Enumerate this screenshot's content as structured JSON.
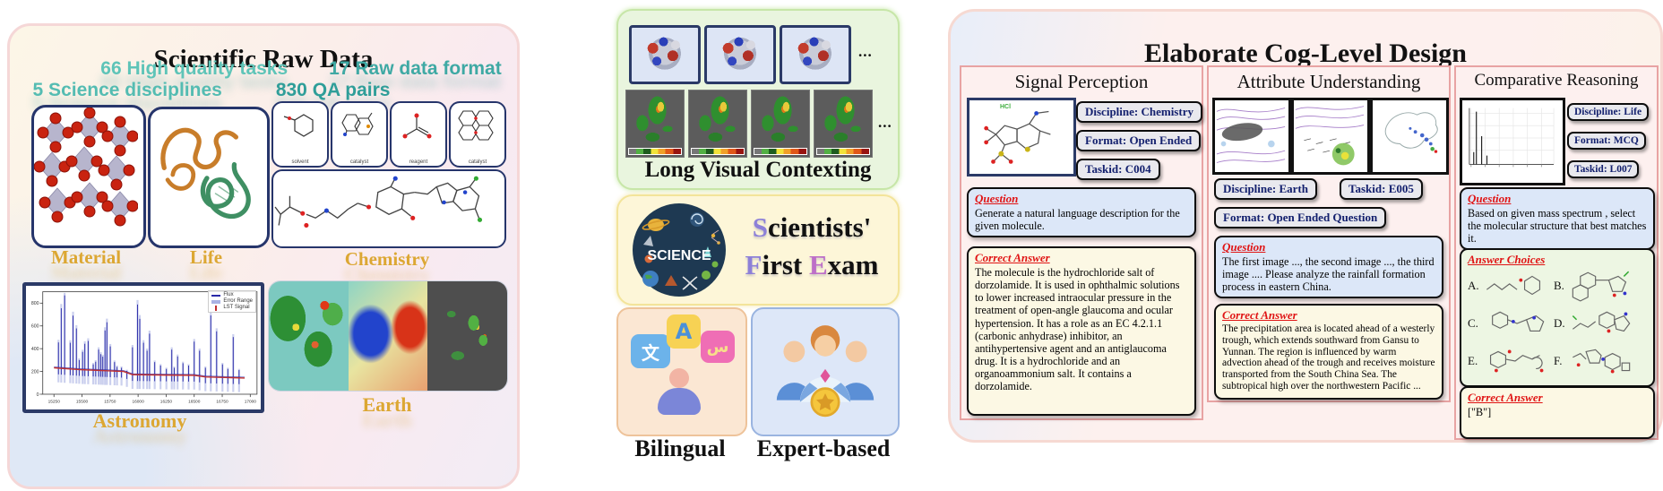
{
  "left_panel": {
    "title": "Scientific Raw Data",
    "stat1": "66 High quality tasks",
    "stat2": "17 Raw data format",
    "stat3": "5 Science disciplines",
    "stat4": "830 QA pairs",
    "labels": {
      "material": "Material",
      "life": "Life",
      "chemistry": "Chemistry",
      "astronomy": "Astronomy",
      "earth": "Earth"
    },
    "chem_cards": [
      "solvent",
      "catalyst",
      "reagent",
      "catalyst"
    ]
  },
  "middle": {
    "long_visual_title": "Long Visual Contexting",
    "ellipsis": "...",
    "logo_text": "SCIENCE",
    "sfe": {
      "w1i": "S",
      "w1r": "cientists'",
      "w2i": "F",
      "w2r": "irst ",
      "w3i": "E",
      "w3r": "xam"
    },
    "bilingual_label": "Bilingual",
    "glyph_zh": "文",
    "glyph_a": "A",
    "glyph_ar": "س",
    "expert_label": "Expert-based"
  },
  "right_panel": {
    "title": "Elaborate Cog-Level Design",
    "question_header": "Question",
    "answer_header": "Correct Answer",
    "choices_header": "Answer Choices",
    "col1": {
      "title": "Signal Perception",
      "molecule_note": "HCl",
      "badge1": "Discipline: Chemistry",
      "badge2": "Format: Open Ended",
      "badge3": "Taskid: C004",
      "question": "Generate a natural language description for the given molecule.",
      "answer": "The molecule is the hydrochloride salt of dorzolamide. It is used in ophthalmic solutions to lower increased intraocular pressure in the treatment of open-angle glaucoma and ocular hypertension. It has a role as an EC 4.2.1.1 (carbonic anhydrase) inhibitor, an antihypertensive agent and an antiglaucoma drug. It is a hydrochloride and an organoammonium salt. It contains a dorzolamide."
    },
    "col2": {
      "title": "Attribute Understanding",
      "badge1": "Discipline: Earth",
      "badge2": "Taskid: E005",
      "badge3": "Format: Open Ended Question",
      "question": "The first image ..., the second image ..., the third image .... Please analyze the rainfall formation process in eastern China.",
      "answer": "The precipitation area is located ahead of a westerly trough, which extends southward from Gansu to Yunnan. The region is influenced by warm advection ahead of the trough and receives moisture transported from the South China Sea. The subtropical high over the northwestern Pacific ..."
    },
    "col3": {
      "title": "Comparative Reasoning",
      "badge1": "Discipline: Life",
      "badge2": "Format: MCQ",
      "badge3": "Taskid: L007",
      "question": "Based on given mass spectrum , select the molecular structure that best matches it.",
      "choices": [
        "A.",
        "B.",
        "C.",
        "D.",
        "E.",
        "F."
      ],
      "answer": "[\"B\"]"
    }
  },
  "chart_data": {
    "type": "line",
    "title": "",
    "xlabel": "",
    "ylabel": "",
    "legend": [
      "Flux",
      "Error Range",
      "LST Signal"
    ],
    "legend_position": "upper right",
    "grid": false,
    "x_ticks": [
      15250,
      15500,
      15750,
      16000,
      16250,
      16500,
      16750,
      17000
    ],
    "y_ticks": [
      0,
      200,
      400,
      600,
      800
    ],
    "xlim": [
      15150,
      17060
    ],
    "ylim": [
      0,
      900
    ],
    "colors": {
      "flux": "#2a2aa8",
      "error_range": "#a9b2e4",
      "lst_signal": "#c03030"
    },
    "baseline": [
      [
        15250,
        232
      ],
      [
        15500,
        215
      ],
      [
        15750,
        205
      ],
      [
        15870,
        200
      ],
      [
        15950,
        172
      ],
      [
        16250,
        168
      ],
      [
        16500,
        166
      ],
      [
        16600,
        152
      ],
      [
        16950,
        142
      ]
    ],
    "spikes": [
      [
        15290,
        455
      ],
      [
        15315,
        755
      ],
      [
        15345,
        868
      ],
      [
        15395,
        452
      ],
      [
        15420,
        690
      ],
      [
        15450,
        578
      ],
      [
        15475,
        300
      ],
      [
        15505,
        372
      ],
      [
        15525,
        443
      ],
      [
        15555,
        468
      ],
      [
        15600,
        262
      ],
      [
        15622,
        285
      ],
      [
        15648,
        392
      ],
      [
        15667,
        352
      ],
      [
        15685,
        330
      ],
      [
        15705,
        560
      ],
      [
        15722,
        632
      ],
      [
        15752,
        420
      ],
      [
        15790,
        282
      ],
      [
        15812,
        240
      ],
      [
        15852,
        232
      ],
      [
        15900,
        205
      ],
      [
        15950,
        412
      ],
      [
        15995,
        788
      ],
      [
        16015,
        662
      ],
      [
        16048,
        452
      ],
      [
        16080,
        382
      ],
      [
        16102,
        532
      ],
      [
        16148,
        282
      ],
      [
        16200,
        252
      ],
      [
        16252,
        222
      ],
      [
        16300,
        392
      ],
      [
        16322,
        232
      ],
      [
        16352,
        332
      ],
      [
        16400,
        272
      ],
      [
        16450,
        252
      ],
      [
        16500,
        462
      ],
      [
        16548,
        382
      ],
      [
        16600,
        232
      ],
      [
        16648,
        692
      ],
      [
        16700,
        552
      ],
      [
        16752,
        262
      ],
      [
        16800,
        222
      ],
      [
        16848,
        502
      ],
      [
        16900,
        212
      ]
    ]
  }
}
